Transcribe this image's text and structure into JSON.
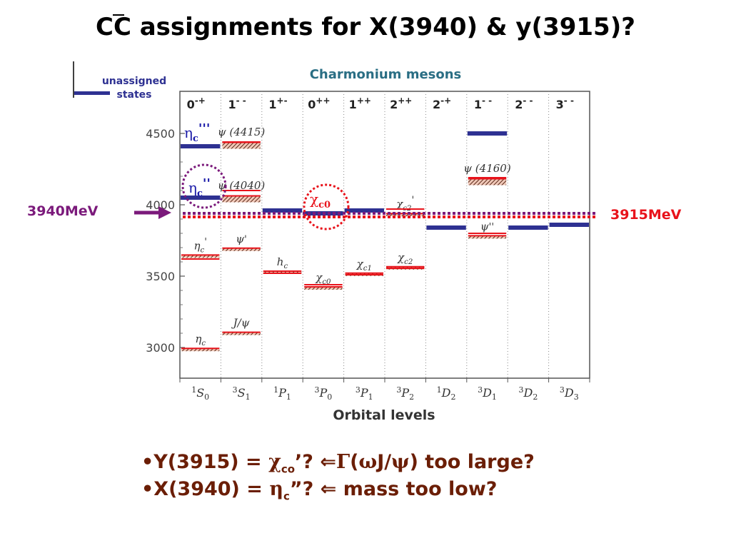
{
  "slide": {
    "title_prefix": "C",
    "title_c2": "C",
    "title_rest": " assignments for  X(3940)  & y(3915)?"
  },
  "diagram": {
    "header": "Charmonium mesons",
    "legend_label_1": "unassigned",
    "legend_label_2": "states",
    "xlabel": "Orbital levels",
    "jpc": [
      "0-+",
      "1- -",
      "1+-",
      "0++",
      "1++",
      "2++",
      "2-+",
      "1- -",
      "2- -",
      "3- -"
    ],
    "columns": [
      {
        "pre": "1",
        "letter": "S",
        "sub": "0"
      },
      {
        "pre": "3",
        "letter": "S",
        "sub": "1"
      },
      {
        "pre": "1",
        "letter": "P",
        "sub": "1"
      },
      {
        "pre": "3",
        "letter": "P",
        "sub": "0"
      },
      {
        "pre": "3",
        "letter": "P",
        "sub": "1"
      },
      {
        "pre": "3",
        "letter": "P",
        "sub": "2"
      },
      {
        "pre": "1",
        "letter": "D",
        "sub": "2"
      },
      {
        "pre": "3",
        "letter": "D",
        "sub": "1"
      },
      {
        "pre": "3",
        "letter": "D",
        "sub": "2"
      },
      {
        "pre": "3",
        "letter": "D",
        "sub": "3"
      }
    ],
    "yticks": [
      3000,
      3500,
      4000,
      4500
    ],
    "ylim": [
      2940,
      4660
    ],
    "known_states": [
      {
        "col": 0,
        "mass": 2984,
        "label": "η",
        "sub": "c",
        "prime": ""
      },
      {
        "col": 0,
        "mass": 3638,
        "label": "η",
        "sub": "c",
        "prime": "'"
      },
      {
        "col": 1,
        "mass": 3097,
        "label": "J/ψ",
        "sub": "",
        "prime": ""
      },
      {
        "col": 1,
        "mass": 3686,
        "label": "ψ",
        "sub": "",
        "prime": "'"
      },
      {
        "col": 1,
        "mass": 4040,
        "label": "ψ (4040)",
        "sub": "",
        "prime": ""
      },
      {
        "col": 1,
        "mass": 4415,
        "label": "ψ (4415)",
        "sub": "",
        "prime": ""
      },
      {
        "col": 2,
        "mass": 3525,
        "label": "h",
        "sub": "c",
        "prime": ""
      },
      {
        "col": 3,
        "mass": 3415,
        "label": "χ",
        "sub": "c0",
        "prime": ""
      },
      {
        "col": 4,
        "mass": 3511,
        "label": "χ",
        "sub": "c1",
        "prime": ""
      },
      {
        "col": 5,
        "mass": 3556,
        "label": "χ",
        "sub": "c2",
        "prime": ""
      },
      {
        "col": 5,
        "mass": 3929,
        "label": "χ",
        "sub": "c2",
        "prime": "'"
      },
      {
        "col": 7,
        "mass": 3773,
        "label": "ψ",
        "sub": "",
        "prime": "''"
      },
      {
        "col": 7,
        "mass": 4160,
        "label": "ψ (4160)",
        "sub": "",
        "prime": ""
      }
    ],
    "predicted_lines": [
      {
        "col": 0,
        "mass": 3620
      },
      {
        "col": 0,
        "mass": 4050
      },
      {
        "col": 1,
        "mass": 4100
      },
      {
        "col": 1,
        "mass": 4440
      },
      {
        "col": 2,
        "mass": 3520
      },
      {
        "col": 3,
        "mass": 3440
      },
      {
        "col": 4,
        "mass": 3510
      },
      {
        "col": 5,
        "mass": 3555
      },
      {
        "col": 5,
        "mass": 3970
      },
      {
        "col": 7,
        "mass": 3800
      },
      {
        "col": 7,
        "mass": 4190
      },
      {
        "col": 7,
        "mass": 4500
      }
    ],
    "unassigned_states": [
      {
        "col": 0,
        "mass": 4410
      },
      {
        "col": 0,
        "mass": 4050
      },
      {
        "col": 2,
        "mass": 3960
      },
      {
        "col": 3,
        "mass": 3940
      },
      {
        "col": 4,
        "mass": 3960
      },
      {
        "col": 6,
        "mass": 3840
      },
      {
        "col": 7,
        "mass": 4500
      },
      {
        "col": 8,
        "mass": 3840
      },
      {
        "col": 9,
        "mass": 3860
      }
    ],
    "dotted_lines": [
      {
        "mass": 3940,
        "color": "#7b1a7b"
      },
      {
        "mass": 3915,
        "color": "#e8131b"
      }
    ],
    "annotations": {
      "etac3_label": "η",
      "etac3_sub": "c",
      "etac3_prime": "'''",
      "etac2_label": "η",
      "etac2_sub": "c",
      "etac2_prime": "''",
      "chic0_label": "χ",
      "chic0_sub": "c0",
      "mev_3940": "3940MeV",
      "mev_3915": "3915MeV"
    },
    "colors": {
      "known": "#e8131b",
      "unassigned": "#2e3192",
      "purple": "#7b1a7b",
      "header": "#2a6e84",
      "legend_text": "#2e3192"
    }
  },
  "bullets": {
    "b1_a": "•Y(3915) = ",
    "b1_sym": "χ",
    "b1_sub": "co",
    "b1_b": "’?  ",
    "b1_arrow": "⇐",
    "b1_gamma": "Γ",
    "b1_c": "(",
    "b1_omega": "ω",
    "b1_d": "J/",
    "b1_psi": "ψ",
    "b1_e": ") too large?",
    "b2_a": "•X(3940) = ",
    "b2_sym": "η",
    "b2_sub": "c",
    "b2_b": "”?   ",
    "b2_arrow": "⇐",
    "b2_c": " mass too low?"
  }
}
